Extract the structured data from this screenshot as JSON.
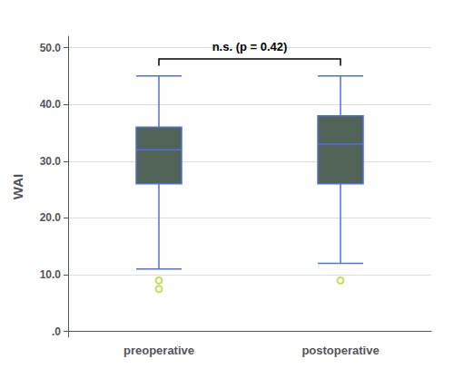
{
  "chart_data": {
    "type": "box",
    "categories": [
      "preoperative",
      "postoperative"
    ],
    "boxes": [
      {
        "median": 32,
        "q1": 26,
        "q3": 36,
        "whisker_low": 11,
        "whisker_high": 45,
        "outliers": [
          9,
          7.5
        ]
      },
      {
        "median": 33,
        "q1": 26,
        "q3": 38,
        "whisker_low": 12,
        "whisker_high": 45,
        "outliers": [
          9
        ]
      }
    ],
    "color": "#526358",
    "ylabel": "WAI",
    "ylim": [
      -1,
      52
    ],
    "yticks": [
      {
        "value": 0,
        "label": ".0"
      },
      {
        "value": 10,
        "label": "10.0"
      },
      {
        "value": 20,
        "label": "20.0"
      },
      {
        "value": 30,
        "label": "30.0"
      },
      {
        "value": 40,
        "label": "40.0"
      },
      {
        "value": 50,
        "label": "50.0"
      }
    ],
    "grid": true,
    "annotation": {
      "text": "n.s. (p = 0.42)",
      "y": 49.2
    },
    "bracket": {
      "y": 48.0,
      "drop": 1.2
    }
  }
}
